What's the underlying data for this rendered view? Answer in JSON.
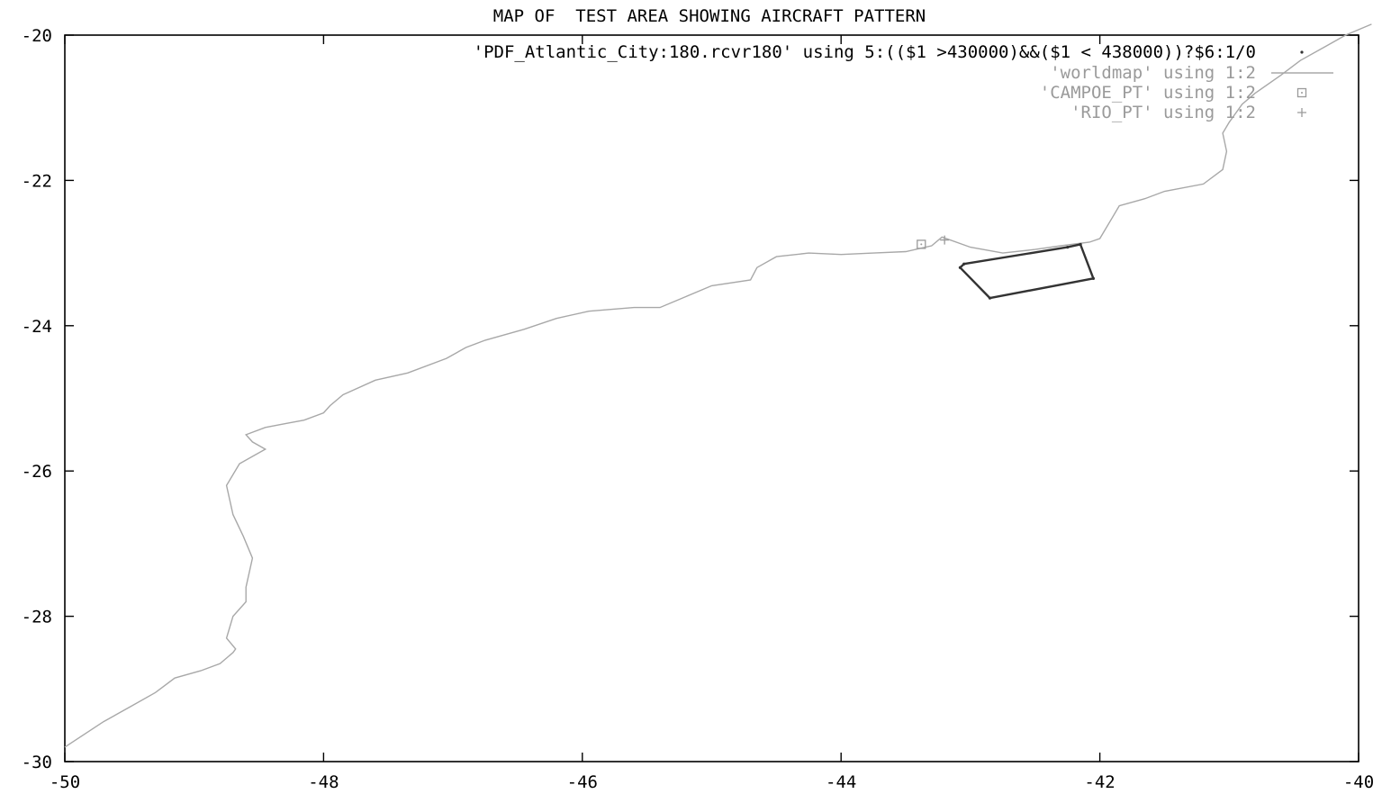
{
  "chart_data": {
    "type": "line",
    "title": "MAP OF  TEST AREA SHOWING AIRCRAFT PATTERN",
    "xlabel": "",
    "ylabel": "",
    "xlim": [
      -50,
      -40
    ],
    "ylim": [
      -30,
      -20
    ],
    "xticks": [
      -50,
      -48,
      -46,
      -44,
      -42,
      -40
    ],
    "yticks": [
      -20,
      -22,
      -24,
      -26,
      -28,
      -30
    ],
    "grid": false,
    "legend_position": "top-right",
    "colors": {
      "axis": "#000000",
      "pattern": "#333333",
      "worldmap": "#a8a8a8",
      "markers": "#9a9a9a"
    },
    "series": [
      {
        "name": "'PDF_Atlantic_City:180.rcvr180' using 5:(($1 >430000)&&($1 < 438000))?$6:1/0",
        "style": "points",
        "x": [
          -42.15,
          -42.25,
          -43.05,
          -43.08,
          -42.85,
          -42.05,
          -42.15
        ],
        "y": [
          -22.88,
          -22.92,
          -23.15,
          -23.2,
          -23.62,
          -23.35,
          -22.88
        ]
      },
      {
        "name": "'worldmap' using 1:2",
        "style": "lines",
        "x": [
          -50.0,
          -49.7,
          -49.5,
          -49.3,
          -49.15,
          -48.95,
          -48.8,
          -48.7,
          -48.68,
          -48.75,
          -48.7,
          -48.6,
          -48.6,
          -48.55,
          -48.62,
          -48.7,
          -48.75,
          -48.65,
          -48.45,
          -48.55,
          -48.6,
          -48.45,
          -48.3,
          -48.15,
          -48.0,
          -47.95,
          -47.85,
          -47.6,
          -47.35,
          -47.05,
          -46.9,
          -46.75,
          -46.45,
          -46.2,
          -45.95,
          -45.6,
          -45.4,
          -45.2,
          -45.0,
          -44.7,
          -44.65,
          -44.5,
          -44.25,
          -44.0,
          -43.75,
          -43.5,
          -43.3,
          -43.22,
          -43.0,
          -42.75,
          -42.5,
          -42.3,
          -42.08,
          -42.0,
          -41.9,
          -41.85,
          -41.65,
          -41.5,
          -41.2,
          -41.05,
          -41.02,
          -41.05,
          -41.0,
          -40.9,
          -40.8,
          -40.6,
          -40.45,
          -40.25,
          -40.1,
          -39.9
        ],
        "y": [
          -29.8,
          -29.45,
          -29.25,
          -29.05,
          -28.85,
          -28.75,
          -28.65,
          -28.5,
          -28.45,
          -28.3,
          -28.0,
          -27.8,
          -27.6,
          -27.2,
          -26.9,
          -26.6,
          -26.2,
          -25.9,
          -25.7,
          -25.6,
          -25.5,
          -25.4,
          -25.35,
          -25.3,
          -25.2,
          -25.1,
          -24.95,
          -24.75,
          -24.65,
          -24.45,
          -24.3,
          -24.2,
          -24.05,
          -23.9,
          -23.8,
          -23.75,
          -23.75,
          -23.6,
          -23.45,
          -23.37,
          -23.2,
          -23.05,
          -23.0,
          -23.02,
          -23.0,
          -22.98,
          -22.9,
          -22.78,
          -22.92,
          -23.0,
          -22.95,
          -22.9,
          -22.85,
          -22.8,
          -22.5,
          -22.35,
          -22.25,
          -22.15,
          -22.05,
          -21.85,
          -21.6,
          -21.35,
          -21.2,
          -20.95,
          -20.8,
          -20.55,
          -20.35,
          -20.15,
          -20.0,
          -19.85
        ]
      },
      {
        "name": "'CAMPOE_PT' using 1:2",
        "style": "points",
        "x": [
          -43.38
        ],
        "y": [
          -22.88
        ]
      },
      {
        "name": "'RIO_PT' using 1:2",
        "style": "points",
        "x": [
          -43.2
        ],
        "y": [
          -22.82
        ]
      }
    ]
  }
}
